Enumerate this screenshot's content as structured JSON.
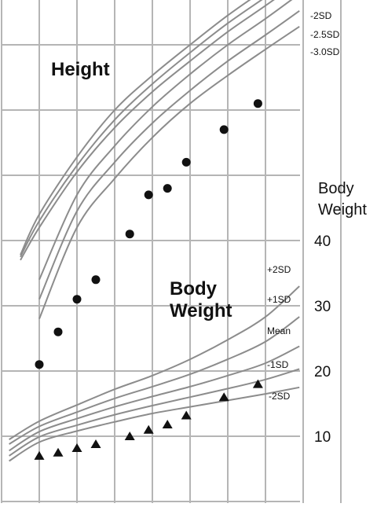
{
  "chart_data": {
    "type": "line",
    "annotations": {
      "height": "Height",
      "body_weight": "Body Weight"
    },
    "y_right_label": "Body Weight",
    "y_right_ticks": [
      10,
      20,
      30,
      40
    ],
    "ylim": [
      2,
      80
    ],
    "grid": true,
    "x_gridlines": 9,
    "colors": {
      "curves": "#8c8c8c",
      "grid": "#b5b5b5",
      "markers": "#111111"
    },
    "height_curve_labels": [
      "-2SD",
      "-2.5SD",
      "-3.0SD"
    ],
    "weight_curve_labels": [
      "+2SD",
      "+1SD",
      "Mean",
      "-1SD",
      "-2SD"
    ],
    "height_curves": [
      {
        "label": "",
        "points": [
          [
            0.5,
            37.8
          ],
          [
            1.0,
            44.0
          ],
          [
            2.0,
            52.8
          ],
          [
            3.0,
            60.0
          ],
          [
            4.0,
            65.3
          ],
          [
            5.0,
            70.0
          ],
          [
            6.0,
            74.5
          ],
          [
            7.0,
            78.5
          ],
          [
            7.7,
            81.0
          ]
        ]
      },
      {
        "label": "",
        "points": [
          [
            0.5,
            37.5
          ],
          [
            1.0,
            43.0
          ],
          [
            2.0,
            51.5
          ],
          [
            3.0,
            58.5
          ],
          [
            4.0,
            64.0
          ],
          [
            5.0,
            68.8
          ],
          [
            6.0,
            73.3
          ],
          [
            7.0,
            77.3
          ],
          [
            7.8,
            80.5
          ]
        ]
      },
      {
        "label": "",
        "points": [
          [
            0.5,
            37.0
          ],
          [
            1.0,
            42.0
          ],
          [
            2.0,
            50.5
          ],
          [
            3.0,
            57.3
          ],
          [
            4.0,
            62.8
          ],
          [
            5.0,
            67.5
          ],
          [
            6.0,
            72.0
          ],
          [
            7.0,
            76.0
          ],
          [
            7.9,
            79.7
          ]
        ]
      },
      {
        "label": "-2SD",
        "points": [
          [
            1.0,
            34.0
          ],
          [
            2.0,
            47.0
          ],
          [
            3.0,
            54.5
          ],
          [
            4.0,
            60.5
          ],
          [
            5.0,
            65.5
          ],
          [
            6.0,
            70.0
          ],
          [
            7.0,
            74.0
          ],
          [
            7.9,
            77.8
          ]
        ]
      },
      {
        "label": "-2.5SD",
        "points": [
          [
            1.0,
            31.0
          ],
          [
            2.0,
            44.5
          ],
          [
            3.0,
            52.0
          ],
          [
            4.0,
            58.0
          ],
          [
            5.0,
            63.0
          ],
          [
            6.0,
            67.5
          ],
          [
            7.0,
            71.5
          ],
          [
            7.9,
            75.2
          ]
        ]
      },
      {
        "label": "-3.0SD",
        "points": [
          [
            1.0,
            28.0
          ],
          [
            2.0,
            42.0
          ],
          [
            3.0,
            49.5
          ],
          [
            4.0,
            55.8
          ],
          [
            5.0,
            61.0
          ],
          [
            6.0,
            65.3
          ],
          [
            7.0,
            69.3
          ],
          [
            7.9,
            72.8
          ]
        ]
      }
    ],
    "weight_curves": [
      {
        "label": "+2SD",
        "points": [
          [
            0.2,
            9.5
          ],
          [
            1.0,
            12.3
          ],
          [
            2.0,
            14.8
          ],
          [
            3.0,
            17.2
          ],
          [
            4.0,
            19.3
          ],
          [
            5.0,
            21.8
          ],
          [
            6.0,
            24.8
          ],
          [
            7.0,
            28.3
          ],
          [
            7.9,
            33.0
          ]
        ]
      },
      {
        "label": "+1SD",
        "points": [
          [
            0.2,
            8.8
          ],
          [
            1.0,
            11.5
          ],
          [
            2.0,
            13.7
          ],
          [
            3.0,
            15.8
          ],
          [
            4.0,
            17.6
          ],
          [
            5.0,
            19.5
          ],
          [
            6.0,
            21.8
          ],
          [
            7.0,
            24.5
          ],
          [
            7.9,
            28.3
          ]
        ]
      },
      {
        "label": "Mean",
        "points": [
          [
            0.2,
            7.8
          ],
          [
            1.0,
            10.7
          ],
          [
            2.0,
            12.7
          ],
          [
            3.0,
            14.5
          ],
          [
            4.0,
            16.1
          ],
          [
            5.0,
            17.6
          ],
          [
            6.0,
            19.3
          ],
          [
            7.0,
            21.2
          ],
          [
            7.9,
            23.8
          ]
        ]
      },
      {
        "label": "-1SD",
        "points": [
          [
            0.2,
            7.0
          ],
          [
            1.0,
            9.9
          ],
          [
            2.0,
            11.7
          ],
          [
            3.0,
            13.3
          ],
          [
            4.0,
            14.7
          ],
          [
            5.0,
            16.0
          ],
          [
            6.0,
            17.3
          ],
          [
            7.0,
            18.7
          ],
          [
            7.9,
            20.3
          ]
        ]
      },
      {
        "label": "-2SD",
        "points": [
          [
            0.2,
            6.2
          ],
          [
            1.0,
            9.1
          ],
          [
            2.0,
            10.8
          ],
          [
            3.0,
            12.2
          ],
          [
            4.0,
            13.5
          ],
          [
            5.0,
            14.5
          ],
          [
            6.0,
            15.5
          ],
          [
            7.0,
            16.5
          ],
          [
            7.9,
            17.5
          ]
        ]
      }
    ],
    "height_points": [
      [
        1.0,
        21
      ],
      [
        1.5,
        26
      ],
      [
        2.0,
        31
      ],
      [
        2.5,
        34
      ],
      [
        3.4,
        41
      ],
      [
        3.9,
        47
      ],
      [
        4.4,
        48
      ],
      [
        4.9,
        52
      ],
      [
        5.9,
        57
      ],
      [
        6.8,
        61
      ]
    ],
    "weight_points": [
      [
        1.0,
        7.0
      ],
      [
        1.5,
        7.5
      ],
      [
        2.0,
        8.2
      ],
      [
        2.5,
        8.8
      ],
      [
        3.4,
        10.0
      ],
      [
        3.9,
        11.0
      ],
      [
        4.4,
        11.8
      ],
      [
        4.9,
        13.2
      ],
      [
        5.9,
        16.0
      ],
      [
        6.8,
        18.0
      ]
    ]
  }
}
